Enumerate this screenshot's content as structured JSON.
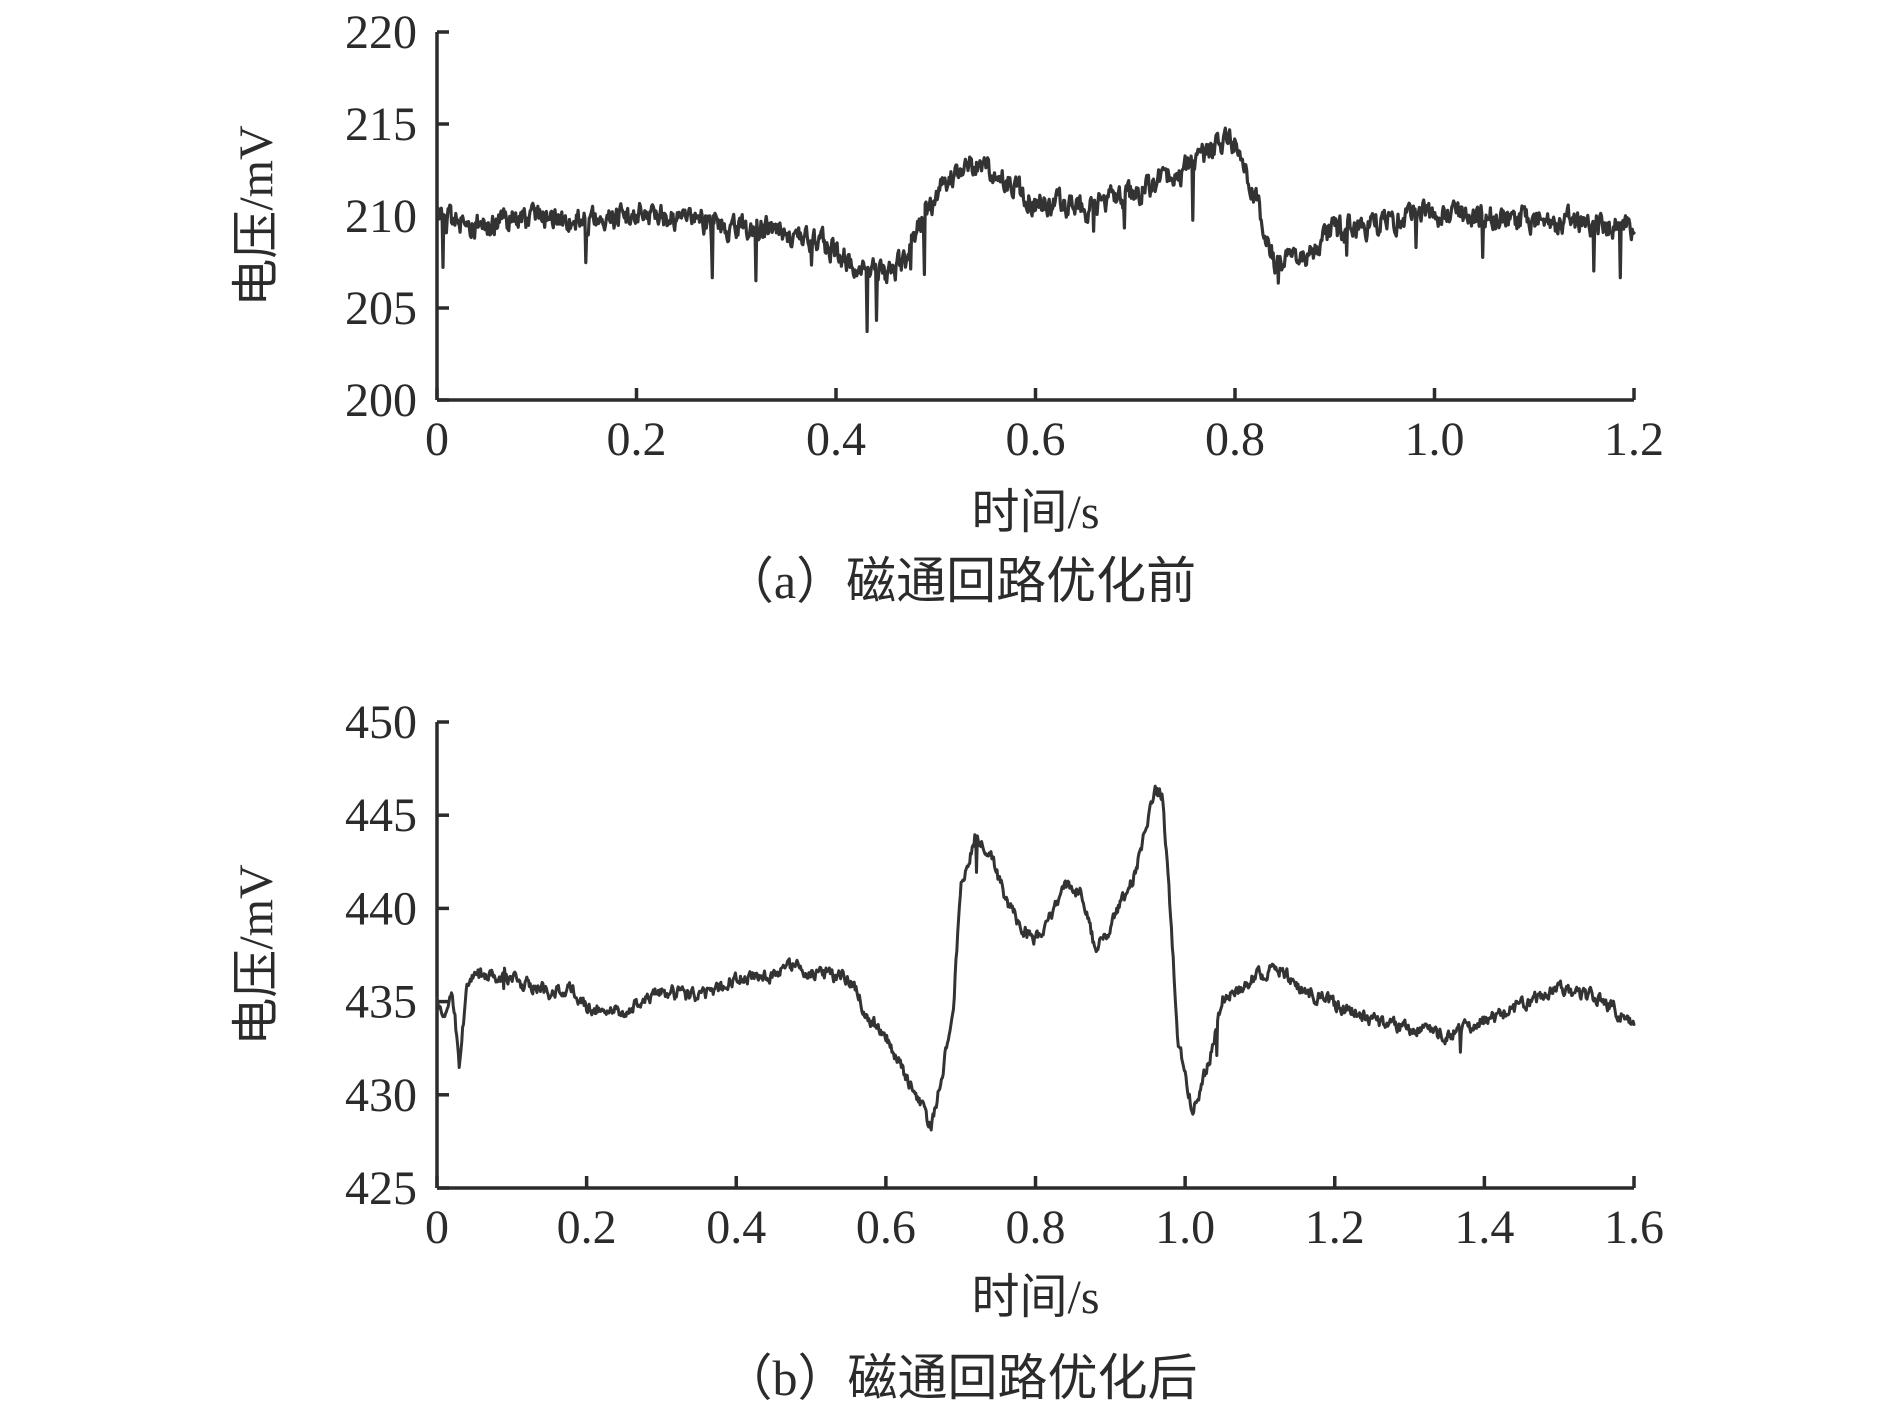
{
  "chart_data": [
    {
      "type": "line",
      "panel": "a",
      "caption": "（a）磁通回路优化前",
      "xlabel": "时间/s",
      "ylabel": "电压/mV",
      "xlim": [
        0,
        1.2
      ],
      "ylim": [
        200,
        220
      ],
      "x_ticks": [
        "0",
        "0.2",
        "0.4",
        "0.6",
        "0.8",
        "1.0",
        "1.2"
      ],
      "y_ticks": [
        "200",
        "205",
        "210",
        "215",
        "220"
      ],
      "grid": false,
      "line_color": "#333333",
      "series": [
        {
          "x": [
            0,
            0.05,
            0.1,
            0.15,
            0.2,
            0.25,
            0.3,
            0.35,
            0.38,
            0.42,
            0.45,
            0.47,
            0.49,
            0.51,
            0.53,
            0.56,
            0.6,
            0.65,
            0.7,
            0.75,
            0.78,
            0.8,
            0.82,
            0.84,
            0.87,
            0.9,
            0.95,
            1.0,
            1.05,
            1.1,
            1.15,
            1.2
          ],
          "y": [
            209.8,
            209.6,
            209.9,
            209.8,
            210.0,
            209.8,
            209.5,
            209.2,
            208.7,
            207.4,
            206.8,
            207.5,
            210.2,
            212.0,
            212.7,
            212.2,
            210.8,
            210.4,
            211.2,
            212.6,
            213.8,
            214.0,
            211.0,
            207.6,
            207.8,
            209.2,
            209.7,
            210.2,
            210.0,
            209.8,
            209.6,
            209.3
          ]
        }
      ]
    },
    {
      "type": "line",
      "panel": "b",
      "caption": "（b）磁通回路优化后",
      "xlabel": "时间/s",
      "ylabel": "电压/mV",
      "xlim": [
        0,
        1.6
      ],
      "ylim": [
        425,
        450
      ],
      "x_ticks": [
        "0",
        "0.2",
        "0.4",
        "0.6",
        "0.8",
        "1.0",
        "1.2",
        "1.4",
        "1.6"
      ],
      "y_ticks": [
        "425",
        "430",
        "435",
        "440",
        "445",
        "450"
      ],
      "grid": false,
      "line_color": "#333333",
      "series": [
        {
          "x": [
            0,
            0.01,
            0.02,
            0.03,
            0.04,
            0.06,
            0.1,
            0.15,
            0.18,
            0.2,
            0.25,
            0.3,
            0.35,
            0.4,
            0.45,
            0.48,
            0.5,
            0.55,
            0.58,
            0.6,
            0.63,
            0.66,
            0.67,
            0.69,
            0.7,
            0.72,
            0.74,
            0.76,
            0.78,
            0.8,
            0.82,
            0.84,
            0.86,
            0.88,
            0.9,
            0.93,
            0.95,
            0.96,
            0.97,
            0.98,
            0.99,
            1.01,
            1.03,
            1.05,
            1.1,
            1.13,
            1.15,
            1.2,
            1.25,
            1.3,
            1.35,
            1.4,
            1.45,
            1.5,
            1.55,
            1.6
          ],
          "y": [
            435.0,
            434.2,
            436.0,
            431.5,
            436.0,
            436.5,
            436.2,
            435.5,
            435.8,
            434.7,
            434.5,
            435.5,
            435.3,
            436.2,
            436.4,
            437.0,
            436.5,
            436.3,
            434.0,
            433.2,
            430.6,
            428.4,
            430.0,
            434.8,
            441.0,
            444.0,
            443.0,
            440.5,
            439.0,
            438.4,
            439.5,
            441.3,
            440.8,
            437.8,
            439.0,
            441.5,
            444.5,
            446.3,
            446.0,
            440.0,
            433.0,
            429.2,
            431.5,
            435.0,
            436.5,
            436.7,
            435.8,
            434.8,
            434.0,
            433.5,
            433.2,
            434.0,
            434.8,
            435.6,
            435.2,
            433.8
          ]
        }
      ]
    }
  ]
}
